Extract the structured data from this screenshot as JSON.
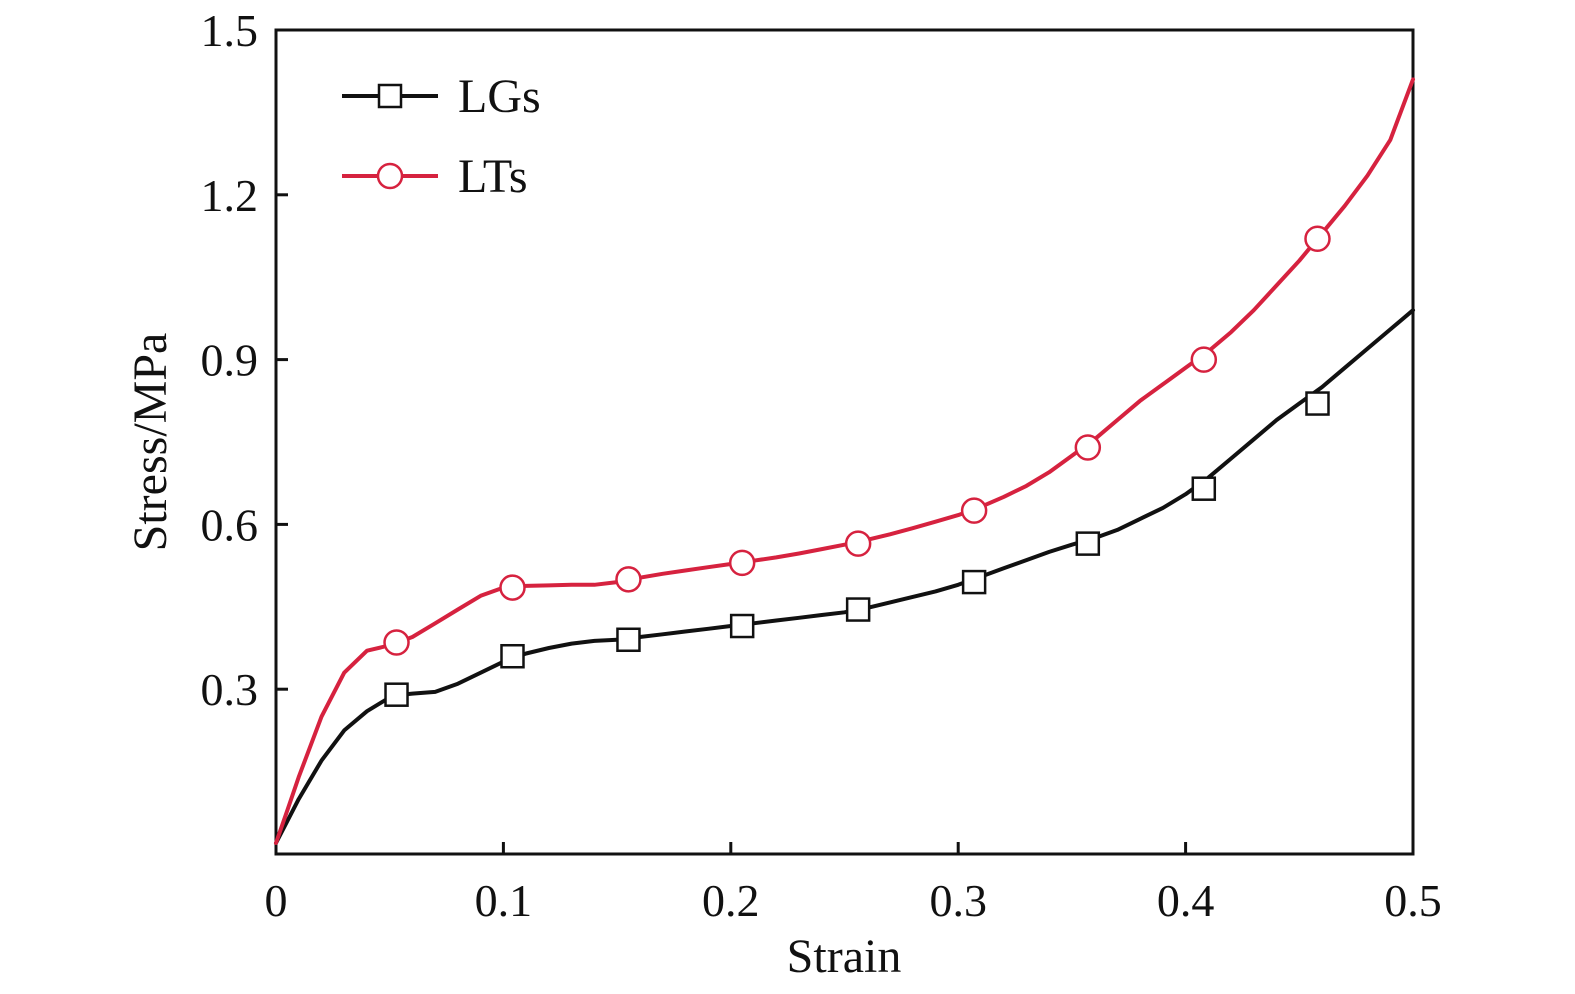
{
  "chart_data": {
    "type": "line",
    "title": "",
    "xlabel": "Strain",
    "ylabel": "Stress/MPa",
    "xlim": [
      0,
      0.5
    ],
    "ylim": [
      0,
      1.5
    ],
    "x_ticks": [
      0,
      0.1,
      0.2,
      0.3,
      0.4,
      0.5
    ],
    "x_tick_labels": [
      "0",
      "0.1",
      "0.2",
      "0.3",
      "0.4",
      "0.5"
    ],
    "y_ticks": [
      0.3,
      0.6,
      0.9,
      1.2,
      1.5
    ],
    "y_tick_labels": [
      "0.3",
      "0.6",
      "0.9",
      "1.2",
      "1.5"
    ],
    "grid": false,
    "legend_position": "top-left",
    "series": [
      {
        "name": "LGs",
        "color": "#111111",
        "marker": "square",
        "curve": [
          [
            0,
            0.02
          ],
          [
            0.005,
            0.06
          ],
          [
            0.01,
            0.1
          ],
          [
            0.02,
            0.17
          ],
          [
            0.03,
            0.225
          ],
          [
            0.04,
            0.26
          ],
          [
            0.05,
            0.285
          ],
          [
            0.055,
            0.29
          ],
          [
            0.06,
            0.292
          ],
          [
            0.07,
            0.295
          ],
          [
            0.08,
            0.31
          ],
          [
            0.09,
            0.33
          ],
          [
            0.1,
            0.35
          ],
          [
            0.11,
            0.365
          ],
          [
            0.12,
            0.375
          ],
          [
            0.13,
            0.383
          ],
          [
            0.14,
            0.388
          ],
          [
            0.15,
            0.39
          ],
          [
            0.16,
            0.395
          ],
          [
            0.17,
            0.4
          ],
          [
            0.18,
            0.405
          ],
          [
            0.19,
            0.41
          ],
          [
            0.2,
            0.415
          ],
          [
            0.21,
            0.42
          ],
          [
            0.22,
            0.425
          ],
          [
            0.23,
            0.43
          ],
          [
            0.24,
            0.435
          ],
          [
            0.25,
            0.44
          ],
          [
            0.26,
            0.448
          ],
          [
            0.27,
            0.458
          ],
          [
            0.28,
            0.468
          ],
          [
            0.29,
            0.478
          ],
          [
            0.3,
            0.49
          ],
          [
            0.31,
            0.505
          ],
          [
            0.32,
            0.52
          ],
          [
            0.33,
            0.535
          ],
          [
            0.34,
            0.55
          ],
          [
            0.35,
            0.563
          ],
          [
            0.36,
            0.575
          ],
          [
            0.37,
            0.59
          ],
          [
            0.38,
            0.61
          ],
          [
            0.39,
            0.63
          ],
          [
            0.4,
            0.655
          ],
          [
            0.41,
            0.685
          ],
          [
            0.42,
            0.72
          ],
          [
            0.43,
            0.755
          ],
          [
            0.44,
            0.79
          ],
          [
            0.45,
            0.82
          ],
          [
            0.46,
            0.85
          ],
          [
            0.47,
            0.885
          ],
          [
            0.48,
            0.92
          ],
          [
            0.49,
            0.955
          ],
          [
            0.5,
            0.99
          ]
        ],
        "markers": [
          [
            0.053,
            0.29
          ],
          [
            0.104,
            0.36
          ],
          [
            0.155,
            0.39
          ],
          [
            0.205,
            0.415
          ],
          [
            0.256,
            0.445
          ],
          [
            0.307,
            0.495
          ],
          [
            0.357,
            0.565
          ],
          [
            0.408,
            0.665
          ],
          [
            0.458,
            0.82
          ]
        ]
      },
      {
        "name": "LTs",
        "color": "#d6223f",
        "marker": "circle",
        "curve": [
          [
            0,
            0.02
          ],
          [
            0.005,
            0.08
          ],
          [
            0.01,
            0.14
          ],
          [
            0.02,
            0.25
          ],
          [
            0.03,
            0.33
          ],
          [
            0.04,
            0.37
          ],
          [
            0.05,
            0.38
          ],
          [
            0.06,
            0.395
          ],
          [
            0.07,
            0.42
          ],
          [
            0.08,
            0.445
          ],
          [
            0.09,
            0.47
          ],
          [
            0.1,
            0.485
          ],
          [
            0.11,
            0.488
          ],
          [
            0.12,
            0.489
          ],
          [
            0.13,
            0.49
          ],
          [
            0.14,
            0.49
          ],
          [
            0.15,
            0.495
          ],
          [
            0.16,
            0.503
          ],
          [
            0.17,
            0.51
          ],
          [
            0.18,
            0.516
          ],
          [
            0.19,
            0.522
          ],
          [
            0.2,
            0.528
          ],
          [
            0.21,
            0.534
          ],
          [
            0.22,
            0.54
          ],
          [
            0.23,
            0.547
          ],
          [
            0.24,
            0.555
          ],
          [
            0.25,
            0.563
          ],
          [
            0.26,
            0.572
          ],
          [
            0.27,
            0.582
          ],
          [
            0.28,
            0.593
          ],
          [
            0.29,
            0.605
          ],
          [
            0.3,
            0.617
          ],
          [
            0.31,
            0.632
          ],
          [
            0.32,
            0.65
          ],
          [
            0.33,
            0.67
          ],
          [
            0.34,
            0.695
          ],
          [
            0.35,
            0.725
          ],
          [
            0.36,
            0.755
          ],
          [
            0.37,
            0.79
          ],
          [
            0.38,
            0.825
          ],
          [
            0.39,
            0.855
          ],
          [
            0.4,
            0.885
          ],
          [
            0.41,
            0.915
          ],
          [
            0.42,
            0.95
          ],
          [
            0.43,
            0.99
          ],
          [
            0.44,
            1.035
          ],
          [
            0.45,
            1.08
          ],
          [
            0.46,
            1.13
          ],
          [
            0.47,
            1.18
          ],
          [
            0.48,
            1.235
          ],
          [
            0.49,
            1.3
          ],
          [
            0.5,
            1.41
          ]
        ],
        "markers": [
          [
            0.053,
            0.385
          ],
          [
            0.104,
            0.485
          ],
          [
            0.155,
            0.5
          ],
          [
            0.205,
            0.53
          ],
          [
            0.256,
            0.565
          ],
          [
            0.307,
            0.625
          ],
          [
            0.357,
            0.74
          ],
          [
            0.408,
            0.9
          ],
          [
            0.458,
            1.12
          ]
        ]
      }
    ]
  }
}
